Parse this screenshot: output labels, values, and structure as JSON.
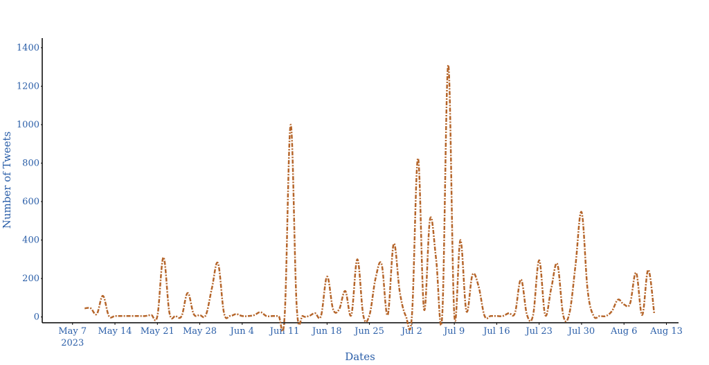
{
  "chart_data": {
    "type": "line",
    "x_label": "Dates",
    "y_label": "Number of Tweets",
    "x": [
      "2023-05-09",
      "2023-05-10",
      "2023-05-11",
      "2023-05-12",
      "2023-05-13",
      "2023-05-14",
      "2023-05-15",
      "2023-05-16",
      "2023-05-17",
      "2023-05-18",
      "2023-05-19",
      "2023-05-20",
      "2023-05-21",
      "2023-05-22",
      "2023-05-23",
      "2023-05-24",
      "2023-05-25",
      "2023-05-26",
      "2023-05-27",
      "2023-05-28",
      "2023-05-29",
      "2023-05-30",
      "2023-05-31",
      "2023-06-01",
      "2023-06-02",
      "2023-06-03",
      "2023-06-04",
      "2023-06-05",
      "2023-06-06",
      "2023-06-07",
      "2023-06-08",
      "2023-06-09",
      "2023-06-10",
      "2023-06-11",
      "2023-06-12",
      "2023-06-13",
      "2023-06-14",
      "2023-06-15",
      "2023-06-16",
      "2023-06-17",
      "2023-06-18",
      "2023-06-19",
      "2023-06-20",
      "2023-06-21",
      "2023-06-22",
      "2023-06-23",
      "2023-06-24",
      "2023-06-25",
      "2023-06-26",
      "2023-06-27",
      "2023-06-28",
      "2023-06-29",
      "2023-06-30",
      "2023-07-01",
      "2023-07-02",
      "2023-07-03",
      "2023-07-04",
      "2023-07-05",
      "2023-07-06",
      "2023-07-07",
      "2023-07-08",
      "2023-07-09",
      "2023-07-10",
      "2023-07-11",
      "2023-07-12",
      "2023-07-13",
      "2023-07-14",
      "2023-07-15",
      "2023-07-16",
      "2023-07-17",
      "2023-07-18",
      "2023-07-19",
      "2023-07-20",
      "2023-07-21",
      "2023-07-22",
      "2023-07-23",
      "2023-07-24",
      "2023-07-25",
      "2023-07-26",
      "2023-07-27",
      "2023-07-28",
      "2023-07-29",
      "2023-07-30",
      "2023-07-31",
      "2023-08-01",
      "2023-08-02",
      "2023-08-03",
      "2023-08-04",
      "2023-08-05",
      "2023-08-06",
      "2023-08-07",
      "2023-08-08",
      "2023-08-09",
      "2023-08-10",
      "2023-08-11"
    ],
    "series": [
      {
        "name": "Number of Tweets",
        "color": "#b5652a",
        "values": [
          45,
          45,
          15,
          110,
          5,
          5,
          5,
          5,
          5,
          5,
          5,
          10,
          5,
          310,
          20,
          5,
          5,
          125,
          15,
          10,
          10,
          150,
          280,
          20,
          5,
          15,
          5,
          5,
          10,
          25,
          5,
          5,
          5,
          5,
          1000,
          50,
          5,
          5,
          20,
          5,
          210,
          40,
          40,
          135,
          10,
          300,
          5,
          10,
          200,
          275,
          10,
          380,
          130,
          5,
          5,
          825,
          40,
          510,
          300,
          5,
          1310,
          10,
          400,
          30,
          220,
          160,
          5,
          5,
          5,
          5,
          20,
          20,
          195,
          10,
          10,
          295,
          10,
          150,
          275,
          5,
          20,
          270,
          545,
          140,
          5,
          5,
          5,
          30,
          90,
          65,
          70,
          230,
          10,
          245,
          15
        ]
      }
    ],
    "xlim": [
      "2023-05-02",
      "2023-08-15"
    ],
    "xticks": [
      {
        "value": "2023-05-07",
        "label": "May 7"
      },
      {
        "value": "2023-05-14",
        "label": "May 14"
      },
      {
        "value": "2023-05-21",
        "label": "May 21"
      },
      {
        "value": "2023-05-28",
        "label": "May 28"
      },
      {
        "value": "2023-06-04",
        "label": "Jun 4"
      },
      {
        "value": "2023-06-11",
        "label": "Jun 11"
      },
      {
        "value": "2023-06-18",
        "label": "Jun 18"
      },
      {
        "value": "2023-06-25",
        "label": "Jun 25"
      },
      {
        "value": "2023-07-02",
        "label": "Jul 2"
      },
      {
        "value": "2023-07-09",
        "label": "Jul 9"
      },
      {
        "value": "2023-07-16",
        "label": "Jul 16"
      },
      {
        "value": "2023-07-23",
        "label": "Jul 23"
      },
      {
        "value": "2023-07-30",
        "label": "Jul 30"
      },
      {
        "value": "2023-08-06",
        "label": "Aug 6"
      },
      {
        "value": "2023-08-13",
        "label": "Aug 13"
      }
    ],
    "x_year_label": "2023",
    "ylim": [
      -30,
      1450
    ],
    "yticks": [
      0,
      200,
      400,
      600,
      800,
      1000,
      1200,
      1400
    ],
    "grid": false
  }
}
